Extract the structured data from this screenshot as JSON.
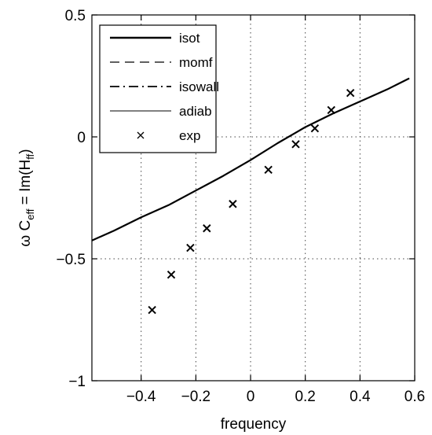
{
  "chart_data": {
    "type": "line",
    "xlabel": "frequency",
    "ylabel": {
      "prefix": "ω C",
      "prefix_sub": "eff",
      "middle": " = Im(H",
      "middle_sub": "ff",
      "suffix": ")"
    },
    "xlim": [
      -0.58,
      0.6
    ],
    "ylim": [
      -1,
      0.5
    ],
    "xticks": [
      -0.4,
      -0.2,
      0,
      0.2,
      0.4,
      0.6
    ],
    "xtick_labels": [
      "−0.4",
      "−0.2",
      "0",
      "0.2",
      "0.4",
      "0.6"
    ],
    "yticks": [
      -1,
      -0.5,
      0,
      0.5
    ],
    "ytick_labels": [
      "−1",
      "−0.5",
      "0",
      "0.5"
    ],
    "grid": "dotted",
    "legend_position": "top-left",
    "legend": [
      {
        "label": "isot",
        "style": "thick-solid"
      },
      {
        "label": "momf",
        "style": "dashed"
      },
      {
        "label": "isowall",
        "style": "dash-dot"
      },
      {
        "label": "adiab",
        "style": "thin-solid"
      },
      {
        "label": "exp",
        "style": "marker-x"
      }
    ],
    "series": [
      {
        "name": "isot",
        "x": [
          -0.58,
          -0.5,
          -0.4,
          -0.3,
          -0.2,
          -0.1,
          0.0,
          0.1,
          0.2,
          0.3,
          0.4,
          0.5,
          0.58
        ],
        "y": [
          -0.425,
          -0.385,
          -0.33,
          -0.28,
          -0.22,
          -0.16,
          -0.095,
          -0.025,
          0.04,
          0.095,
          0.145,
          0.195,
          0.24
        ]
      },
      {
        "name": "momf",
        "x": [
          -0.58,
          -0.5,
          -0.4,
          -0.3,
          -0.2,
          -0.1,
          0.0,
          0.1,
          0.2,
          0.3,
          0.4,
          0.5,
          0.58
        ],
        "y": [
          -0.425,
          -0.385,
          -0.33,
          -0.28,
          -0.22,
          -0.16,
          -0.095,
          -0.025,
          0.04,
          0.095,
          0.145,
          0.195,
          0.24
        ]
      },
      {
        "name": "isowall",
        "x": [
          -0.58,
          -0.5,
          -0.4,
          -0.3,
          -0.2,
          -0.1,
          0.0,
          0.1,
          0.2,
          0.3,
          0.4,
          0.5,
          0.58
        ],
        "y": [
          -0.425,
          -0.385,
          -0.33,
          -0.28,
          -0.22,
          -0.16,
          -0.095,
          -0.025,
          0.04,
          0.095,
          0.145,
          0.195,
          0.24
        ]
      },
      {
        "name": "adiab",
        "x": [
          -0.58,
          -0.5,
          -0.4,
          -0.3,
          -0.2,
          -0.1,
          0.0,
          0.1,
          0.2,
          0.3,
          0.4,
          0.5,
          0.58
        ],
        "y": [
          -0.425,
          -0.385,
          -0.33,
          -0.28,
          -0.22,
          -0.16,
          -0.095,
          -0.025,
          0.04,
          0.095,
          0.145,
          0.195,
          0.24
        ]
      },
      {
        "name": "exp",
        "x": [
          -0.36,
          -0.29,
          -0.22,
          -0.16,
          -0.065,
          0.065,
          0.165,
          0.235,
          0.295,
          0.365
        ],
        "y": [
          -0.71,
          -0.565,
          -0.455,
          -0.375,
          -0.275,
          -0.135,
          -0.03,
          0.035,
          0.11,
          0.18
        ]
      }
    ]
  }
}
